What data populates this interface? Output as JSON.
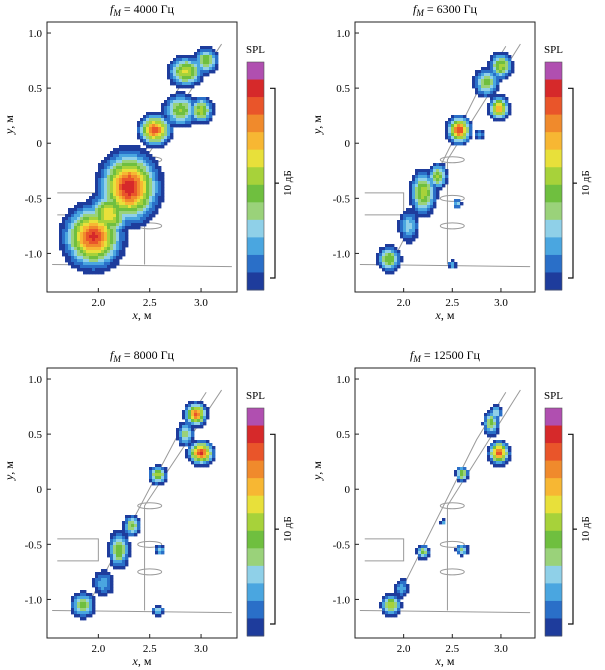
{
  "chart_data": [
    {
      "type": "heatmap",
      "title_sub": "M",
      "title_value": "4000 Гц",
      "xlabel_var": "x",
      "xlabel_unit": ", м",
      "ylabel_var": "y",
      "ylabel_unit": ", м",
      "xlim": [
        1.5,
        3.35
      ],
      "ylim": [
        -1.35,
        1.1
      ],
      "xticks": [
        "2.0",
        "2.5",
        "3.0"
      ],
      "yticks": [
        "1.0",
        "0.5",
        "0",
        "-0.5",
        "-1.0"
      ],
      "colorbar_title": "SPL",
      "colorbar_range_label": "10 дБ",
      "sources": [
        {
          "x": 1.95,
          "y": -0.85,
          "level": 0.95,
          "sx": 0.16,
          "sy": 0.16
        },
        {
          "x": 2.3,
          "y": -0.4,
          "level": 1.0,
          "sx": 0.16,
          "sy": 0.18
        },
        {
          "x": 2.1,
          "y": -0.65,
          "level": 0.7,
          "sx": 0.12,
          "sy": 0.12
        },
        {
          "x": 2.55,
          "y": 0.12,
          "level": 0.9,
          "sx": 0.09,
          "sy": 0.08
        },
        {
          "x": 2.8,
          "y": 0.3,
          "level": 0.55,
          "sx": 0.1,
          "sy": 0.09
        },
        {
          "x": 3.0,
          "y": 0.3,
          "level": 0.6,
          "sx": 0.07,
          "sy": 0.07
        },
        {
          "x": 2.85,
          "y": 0.65,
          "level": 0.65,
          "sx": 0.1,
          "sy": 0.08
        },
        {
          "x": 3.05,
          "y": 0.75,
          "level": 0.55,
          "sx": 0.07,
          "sy": 0.07
        },
        {
          "x": 2.45,
          "y": -0.6,
          "level": 0.3,
          "sx": 0.06,
          "sy": 0.06
        }
      ]
    },
    {
      "type": "heatmap",
      "title_sub": "M",
      "title_value": "6300 Гц",
      "xlabel_var": "x",
      "xlabel_unit": ", м",
      "ylabel_var": "y",
      "ylabel_unit": ", м",
      "xlim": [
        1.5,
        3.35
      ],
      "ylim": [
        -1.35,
        1.1
      ],
      "xticks": [
        "2.0",
        "2.5",
        "3.0"
      ],
      "yticks": [
        "1.0",
        "0.5",
        "0",
        "-0.5",
        "-1.0"
      ],
      "colorbar_title": "SPL",
      "colorbar_range_label": "10 дБ",
      "sources": [
        {
          "x": 1.85,
          "y": -1.05,
          "level": 0.55,
          "sx": 0.07,
          "sy": 0.07
        },
        {
          "x": 2.05,
          "y": -0.75,
          "level": 0.35,
          "sx": 0.07,
          "sy": 0.1
        },
        {
          "x": 2.2,
          "y": -0.45,
          "level": 0.6,
          "sx": 0.08,
          "sy": 0.12
        },
        {
          "x": 2.35,
          "y": -0.3,
          "level": 0.55,
          "sx": 0.06,
          "sy": 0.07
        },
        {
          "x": 2.57,
          "y": 0.12,
          "level": 0.95,
          "sx": 0.07,
          "sy": 0.07
        },
        {
          "x": 2.98,
          "y": 0.32,
          "level": 0.8,
          "sx": 0.06,
          "sy": 0.06
        },
        {
          "x": 2.85,
          "y": 0.55,
          "level": 0.5,
          "sx": 0.08,
          "sy": 0.08
        },
        {
          "x": 3.0,
          "y": 0.7,
          "level": 0.6,
          "sx": 0.07,
          "sy": 0.07
        },
        {
          "x": 2.55,
          "y": -0.55,
          "level": 0.35,
          "sx": 0.03,
          "sy": 0.03
        },
        {
          "x": 2.5,
          "y": -1.1,
          "level": 0.3,
          "sx": 0.03,
          "sy": 0.03
        },
        {
          "x": 2.78,
          "y": 0.08,
          "level": 0.3,
          "sx": 0.03,
          "sy": 0.03
        }
      ]
    },
    {
      "type": "heatmap",
      "title_sub": "M",
      "title_value": "8000 Гц",
      "xlabel_var": "x",
      "xlabel_unit": ", м",
      "ylabel_var": "y",
      "ylabel_unit": ", м",
      "xlim": [
        1.5,
        3.35
      ],
      "ylim": [
        -1.35,
        1.1
      ],
      "xticks": [
        "2.0",
        "2.5",
        "3.0"
      ],
      "yticks": [
        "1.0",
        "0.5",
        "0",
        "-0.5",
        "-1.0"
      ],
      "colorbar_title": "SPL",
      "colorbar_range_label": "10 дБ",
      "sources": [
        {
          "x": 1.85,
          "y": -1.05,
          "level": 0.5,
          "sx": 0.07,
          "sy": 0.07
        },
        {
          "x": 2.05,
          "y": -0.85,
          "level": 0.3,
          "sx": 0.07,
          "sy": 0.08
        },
        {
          "x": 2.2,
          "y": -0.55,
          "level": 0.55,
          "sx": 0.06,
          "sy": 0.1
        },
        {
          "x": 2.33,
          "y": -0.33,
          "level": 0.5,
          "sx": 0.05,
          "sy": 0.06
        },
        {
          "x": 2.58,
          "y": 0.13,
          "level": 0.6,
          "sx": 0.05,
          "sy": 0.05
        },
        {
          "x": 3.0,
          "y": 0.33,
          "level": 0.95,
          "sx": 0.07,
          "sy": 0.06
        },
        {
          "x": 2.95,
          "y": 0.68,
          "level": 0.9,
          "sx": 0.06,
          "sy": 0.06
        },
        {
          "x": 2.85,
          "y": 0.5,
          "level": 0.45,
          "sx": 0.05,
          "sy": 0.07
        },
        {
          "x": 2.6,
          "y": -0.55,
          "level": 0.35,
          "sx": 0.03,
          "sy": 0.03
        },
        {
          "x": 2.58,
          "y": -1.1,
          "level": 0.35,
          "sx": 0.04,
          "sy": 0.03
        }
      ]
    },
    {
      "type": "heatmap",
      "title_sub": "M",
      "title_value": "12500 Гц",
      "xlabel_var": "x",
      "xlabel_unit": ", м",
      "ylabel_var": "y",
      "ylabel_unit": ", м",
      "xlim": [
        1.5,
        3.35
      ],
      "ylim": [
        -1.35,
        1.1
      ],
      "xticks": [
        "2.0",
        "2.5",
        "3.0"
      ],
      "yticks": [
        "1.0",
        "0.5",
        "0",
        "-0.5",
        "-1.0"
      ],
      "colorbar_title": "SPL",
      "colorbar_range_label": "10 дБ",
      "sources": [
        {
          "x": 1.87,
          "y": -1.05,
          "level": 0.6,
          "sx": 0.06,
          "sy": 0.06
        },
        {
          "x": 1.98,
          "y": -0.9,
          "level": 0.3,
          "sx": 0.05,
          "sy": 0.06
        },
        {
          "x": 2.2,
          "y": -0.57,
          "level": 0.5,
          "sx": 0.04,
          "sy": 0.04
        },
        {
          "x": 2.6,
          "y": -0.55,
          "level": 0.45,
          "sx": 0.04,
          "sy": 0.03
        },
        {
          "x": 2.6,
          "y": 0.14,
          "level": 0.55,
          "sx": 0.04,
          "sy": 0.04
        },
        {
          "x": 2.98,
          "y": 0.33,
          "level": 0.9,
          "sx": 0.06,
          "sy": 0.06
        },
        {
          "x": 2.9,
          "y": 0.6,
          "level": 0.5,
          "sx": 0.05,
          "sy": 0.07
        },
        {
          "x": 2.95,
          "y": 0.7,
          "level": 0.4,
          "sx": 0.04,
          "sy": 0.04
        },
        {
          "x": 2.4,
          "y": -0.3,
          "level": 0.3,
          "sx": 0.02,
          "sy": 0.02
        }
      ]
    }
  ],
  "colors": {
    "scale": [
      "#1e3c9c",
      "#2a6fc8",
      "#4aa6e0",
      "#8fd0e8",
      "#9ad27a",
      "#6fbf3f",
      "#a7d23a",
      "#e8e03a",
      "#f7b733",
      "#f08a2c",
      "#e9552a",
      "#d6292a",
      "#b04fb0"
    ]
  }
}
